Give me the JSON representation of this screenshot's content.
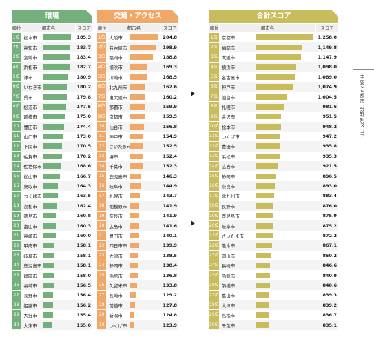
{
  "chart_data": [
    {
      "type": "table",
      "title": "環境",
      "columns": [
        "順位",
        "都市名",
        "スコア"
      ],
      "xlim": [
        140,
        190
      ],
      "rows": [
        {
          "rank": "1位",
          "city": "松本市",
          "score": 185.3
        },
        {
          "rank": "2位",
          "city": "高知市",
          "score": 183.7
        },
        {
          "rank": "3位",
          "city": "宮崎市",
          "score": 183.4
        },
        {
          "rank": "4位",
          "city": "浜松市",
          "score": 182.7
        },
        {
          "rank": "5位",
          "city": "津市",
          "score": 180.9
        },
        {
          "rank": "6位",
          "city": "いわき市",
          "score": 180.2
        },
        {
          "rank": "7位",
          "city": "呉市",
          "score": 179.8
        },
        {
          "rank": "8位",
          "city": "松江市",
          "score": 177.5
        },
        {
          "rank": "9位",
          "city": "前橋市",
          "score": 175.0
        },
        {
          "rank": "10位",
          "city": "豊田市",
          "score": 174.4
        },
        {
          "rank": "11位",
          "city": "山口市",
          "score": 173.0
        },
        {
          "rank": "12位",
          "city": "下関市",
          "score": 170.5
        },
        {
          "rank": "13位",
          "city": "佐賀市",
          "score": 170.2
        },
        {
          "rank": "14位",
          "city": "佐世保市",
          "score": 168.6
        },
        {
          "rank": "15位",
          "city": "松山市",
          "score": 166.7
        },
        {
          "rank": "16位",
          "city": "鳥取市",
          "score": 164.3
        },
        {
          "rank": "17位",
          "city": "つくば市",
          "score": 163.5
        },
        {
          "rank": "18位",
          "city": "高松市",
          "score": 162.4
        },
        {
          "rank": "19位",
          "city": "徳島市",
          "score": 160.8
        },
        {
          "rank": "20位",
          "city": "富山市",
          "score": 160.3
        },
        {
          "rank": "21位",
          "city": "高崎市",
          "score": 160.0
        },
        {
          "rank": "22位",
          "city": "甲府市",
          "score": 158.1
        },
        {
          "rank": "23位",
          "city": "岐阜市",
          "score": 158.1
        },
        {
          "rank": "24位",
          "city": "鹿児島市",
          "score": 158.1
        },
        {
          "rank": "25位",
          "city": "静岡市",
          "score": 158.0
        },
        {
          "rank": "26位",
          "city": "長崎市",
          "score": 156.5
        },
        {
          "rank": "27位",
          "city": "長野市",
          "score": 156.4
        },
        {
          "rank": "28位",
          "city": "姫路市",
          "score": 156.2
        },
        {
          "rank": "29位",
          "city": "大分市",
          "score": 155.4
        },
        {
          "rank": "30位",
          "city": "大津市",
          "score": 155.0
        }
      ]
    },
    {
      "type": "table",
      "title": "交通・アクセス",
      "columns": [
        "順位",
        "都市名",
        "スコア"
      ],
      "xlim": [
        110,
        210
      ],
      "rows": [
        {
          "rank": "1位",
          "city": "大阪市",
          "score": 204.8
        },
        {
          "rank": "2位",
          "city": "名古屋市",
          "score": 198.9
        },
        {
          "rank": "3位",
          "city": "福岡市",
          "score": 188.8
        },
        {
          "rank": "4位",
          "city": "横浜市",
          "score": 169.3
        },
        {
          "rank": "5位",
          "city": "川崎市",
          "score": 168.5
        },
        {
          "rank": "6位",
          "city": "北九州市",
          "score": 162.6
        },
        {
          "rank": "7位",
          "city": "東大阪市",
          "score": 160.2
        },
        {
          "rank": "8位",
          "city": "那覇市",
          "score": 159.9
        },
        {
          "rank": "9位",
          "city": "京都市",
          "score": 159.5
        },
        {
          "rank": "10位",
          "city": "仙台市",
          "score": 156.8
        },
        {
          "rank": "11位",
          "city": "神戸市",
          "score": 154.9
        },
        {
          "rank": "12位",
          "city": "さいたま市",
          "score": 152.5
        },
        {
          "rank": "13位",
          "city": "堺市",
          "score": 152.4
        },
        {
          "rank": "14位",
          "city": "千葉市",
          "score": 152.3
        },
        {
          "rank": "15位",
          "city": "鹿児島市",
          "score": 146.3
        },
        {
          "rank": "16位",
          "city": "岐阜市",
          "score": 144.9
        },
        {
          "rank": "17位",
          "city": "札幌市",
          "score": 143.7
        },
        {
          "rank": "18位",
          "city": "相模原市",
          "score": 141.9
        },
        {
          "rank": "19位",
          "city": "奈良市",
          "score": 141.9
        },
        {
          "rank": "20位",
          "city": "広島市",
          "score": 141.6
        },
        {
          "rank": "21位",
          "city": "豊田市",
          "score": 140.1
        },
        {
          "rank": "22位",
          "city": "四日市市",
          "score": 139.9
        },
        {
          "rank": "23位",
          "city": "大津市",
          "score": 138.5
        },
        {
          "rank": "24位",
          "city": "静岡市",
          "score": 138.4
        },
        {
          "rank": "25位",
          "city": "函館市",
          "score": 136.8
        },
        {
          "rank": "26位",
          "city": "久留米市",
          "score": 133.8
        },
        {
          "rank": "27位",
          "city": "長崎市",
          "score": 129.2
        },
        {
          "rank": "28位",
          "city": "前橋市",
          "score": 127.8
        },
        {
          "rank": "29位",
          "city": "新潟市",
          "score": 124.8
        },
        {
          "rank": "30位",
          "city": "つくば市",
          "score": 123.9
        }
      ]
    },
    {
      "type": "table",
      "title": "合計スコア",
      "columns": [
        "順位",
        "都市名",
        "スコア"
      ],
      "xlim": [
        700,
        1270
      ],
      "rows": [
        {
          "rank": "1位",
          "city": "京都市",
          "score": "1,258.0",
          "value": 1258.0
        },
        {
          "rank": "2位",
          "city": "福岡市",
          "score": "1,149.8",
          "value": 1149.8
        },
        {
          "rank": "3位",
          "city": "大阪市",
          "score": "1,147.9",
          "value": 1147.9
        },
        {
          "rank": "4位",
          "city": "横浜市",
          "score": "1,098.0",
          "value": 1098.0
        },
        {
          "rank": "5位",
          "city": "名古屋市",
          "score": "1,089.0",
          "value": 1089.0
        },
        {
          "rank": "6位",
          "city": "神戸市",
          "score": "1,074.9",
          "value": 1074.9
        },
        {
          "rank": "7位",
          "city": "仙台市",
          "score": "1,004.5",
          "value": 1004.5
        },
        {
          "rank": "8位",
          "city": "札幌市",
          "score": "981.6",
          "value": 981.6
        },
        {
          "rank": "9位",
          "city": "金沢市",
          "score": "951.5",
          "value": 951.5
        },
        {
          "rank": "10位",
          "city": "松本市",
          "score": "948.2",
          "value": 948.2
        },
        {
          "rank": "11位",
          "city": "つくば市",
          "score": "947.2",
          "value": 947.2
        },
        {
          "rank": "12位",
          "city": "豊田市",
          "score": "935.8",
          "value": 935.8
        },
        {
          "rank": "13位",
          "city": "浜松市",
          "score": "935.3",
          "value": 935.3
        },
        {
          "rank": "14位",
          "city": "広島市",
          "score": "921.5",
          "value": 921.5
        },
        {
          "rank": "15位",
          "city": "静岡市",
          "score": "896.5",
          "value": 896.5
        },
        {
          "rank": "16位",
          "city": "奈良市",
          "score": "893.0",
          "value": 893.0
        },
        {
          "rank": "17位",
          "city": "北九州市",
          "score": "883.4",
          "value": 883.4
        },
        {
          "rank": "18位",
          "city": "長野市",
          "score": "876.0",
          "value": 876.0
        },
        {
          "rank": "19位",
          "city": "鹿児島市",
          "score": "875.9",
          "value": 875.9
        },
        {
          "rank": "20位",
          "city": "岐阜市",
          "score": "875.2",
          "value": 875.2
        },
        {
          "rank": "21位",
          "city": "さいたま市",
          "score": "872.2",
          "value": 872.2
        },
        {
          "rank": "22位",
          "city": "熊本市",
          "score": "867.1",
          "value": 867.1
        },
        {
          "rank": "23位",
          "city": "岡山市",
          "score": "850.2",
          "value": 850.2
        },
        {
          "rank": "24位",
          "city": "長崎市",
          "score": "846.6",
          "value": 846.6
        },
        {
          "rank": "25位",
          "city": "函館市",
          "score": "840.9",
          "value": 840.9
        },
        {
          "rank": "26位",
          "city": "前橋市",
          "score": "840.6",
          "value": 840.6
        },
        {
          "rank": "27位",
          "city": "富山市",
          "score": "839.3",
          "value": 839.3
        },
        {
          "rank": "28位",
          "city": "大津市",
          "score": "839.2",
          "value": 839.2
        },
        {
          "rank": "29位",
          "city": "高松市",
          "score": "836.7",
          "value": 836.7
        },
        {
          "rank": "30位",
          "city": "千葉市",
          "score": "835.1",
          "value": 835.1
        }
      ]
    }
  ],
  "side_label": "主要72都市 分野別スコア",
  "colors": {
    "environment": "#73b07c",
    "transport": "#f0a868",
    "total": "#c9bc5c"
  }
}
